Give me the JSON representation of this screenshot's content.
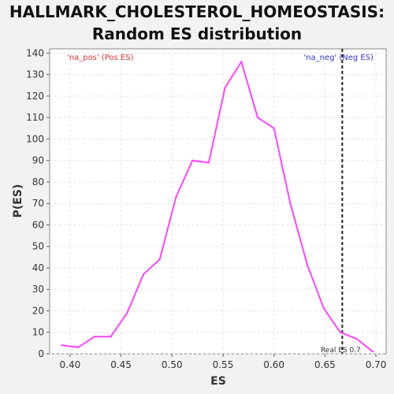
{
  "chart_data": {
    "type": "line",
    "title_line1": "HALLMARK_CHOLESTEROL_HOMEOSTASIS:",
    "title_line2": "Random ES distribution",
    "xlabel": "ES",
    "ylabel": "P(ES)",
    "xlim": [
      0.38,
      0.71
    ],
    "ylim": [
      0,
      142
    ],
    "xticks": [
      "0.40",
      "0.45",
      "0.50",
      "0.55",
      "0.60",
      "0.65",
      "0.70"
    ],
    "yticks": [
      "0",
      "10",
      "20",
      "30",
      "40",
      "50",
      "60",
      "70",
      "80",
      "90",
      "100",
      "110",
      "120",
      "130",
      "140"
    ],
    "grid": true,
    "series": [
      {
        "color": "#ff44ff",
        "x": [
          0.392,
          0.408,
          0.424,
          0.44,
          0.456,
          0.472,
          0.488,
          0.504,
          0.52,
          0.536,
          0.552,
          0.568,
          0.584,
          0.6,
          0.616,
          0.633,
          0.649,
          0.665,
          0.681,
          0.697
        ],
        "y": [
          4,
          3,
          8,
          8,
          19,
          37,
          44,
          73,
          90,
          89,
          124,
          136,
          110,
          105,
          70,
          41,
          21,
          10,
          7,
          1
        ]
      }
    ],
    "real_es": {
      "x": 0.667,
      "label": "Real ES 0.7"
    },
    "annotations": {
      "pos": {
        "text": "'na_pos' (Pos ES)",
        "color": "#dd3333"
      },
      "neg": {
        "text": "'na_neg' (Neg ES)",
        "color": "#3333cc"
      }
    }
  }
}
